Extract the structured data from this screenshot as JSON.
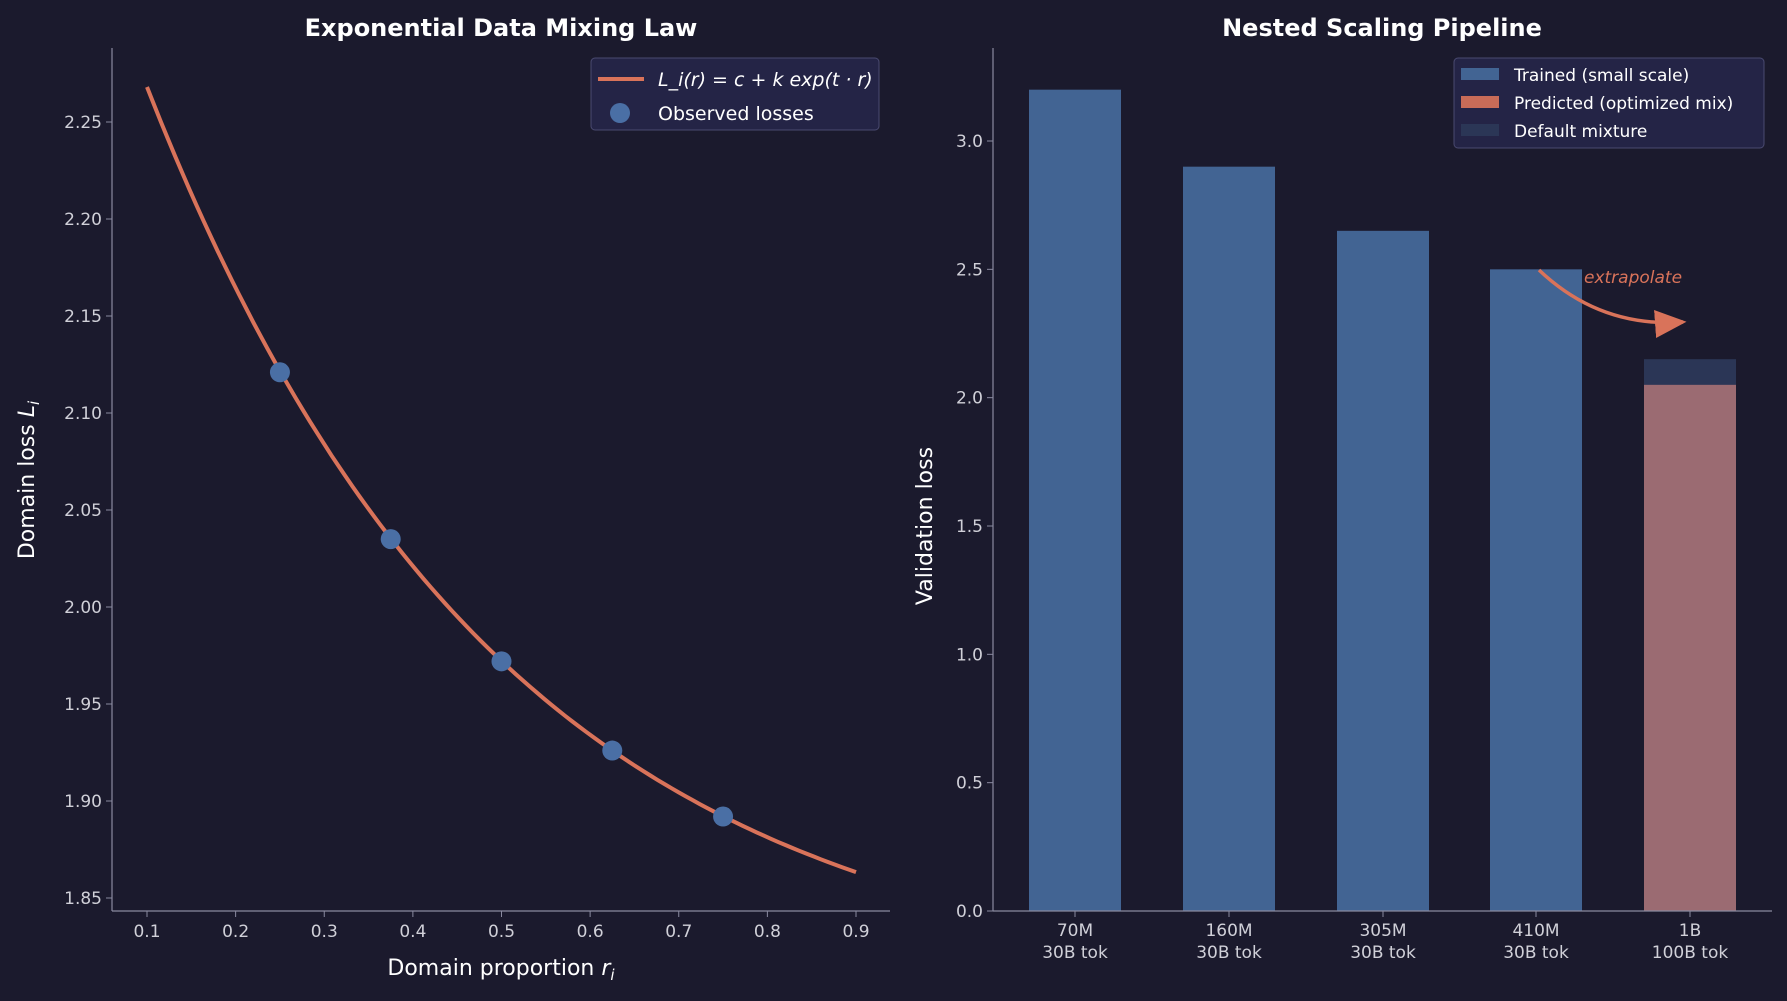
{
  "colors": {
    "background": "#1b1a2d",
    "trained": "#426493",
    "predicted": "#d9735a",
    "predicted_overlay": "#9b6b72",
    "default": "#2b3656",
    "curve": "#d9735a",
    "points": "#4a6fa5",
    "legend_bg": "#242446",
    "axis": "#8a8aa0",
    "text": "#ffffff",
    "tick_text": "#d0d0d8"
  },
  "chart_data": [
    {
      "type": "line",
      "title": "Exponential Data Mixing Law",
      "xlabel": "Domain proportion r_i",
      "ylabel": "Domain loss L_i",
      "xlim": [
        0.06,
        0.94
      ],
      "ylim": [
        1.843,
        2.288
      ],
      "xticks": [
        "0.1",
        "0.2",
        "0.3",
        "0.4",
        "0.5",
        "0.6",
        "0.7",
        "0.8",
        "0.9"
      ],
      "yticks": [
        "1.85",
        "1.90",
        "1.95",
        "2.00",
        "2.05",
        "2.10",
        "2.15",
        "2.20",
        "2.25"
      ],
      "grid": false,
      "legend_position": "top-right",
      "series": [
        {
          "name": "L_i(r) = c + k exp(t · r)",
          "kind": "line",
          "c": 1.8,
          "k": 0.601,
          "t": -2.5,
          "x_range": [
            0.1,
            0.9
          ]
        },
        {
          "name": "Observed losses",
          "kind": "scatter",
          "x": [
            0.25,
            0.375,
            0.5,
            0.625,
            0.75
          ],
          "y": [
            2.121,
            2.035,
            1.972,
            1.926,
            1.892
          ]
        }
      ]
    },
    {
      "type": "bar",
      "title": "Nested Scaling Pipeline",
      "xlabel": "",
      "ylabel": "Validation loss",
      "ylim": [
        0,
        3.4
      ],
      "yticks": [
        "0.0",
        "0.5",
        "1.0",
        "1.5",
        "2.0",
        "2.5",
        "3.0"
      ],
      "grid": false,
      "legend_position": "top-right",
      "categories": [
        [
          "70M",
          "30B tok"
        ],
        [
          "160M",
          "30B tok"
        ],
        [
          "305M",
          "30B tok"
        ],
        [
          "410M",
          "30B tok"
        ],
        [
          "1B",
          "100B tok"
        ]
      ],
      "series": [
        {
          "name": "Trained (small scale)",
          "values": [
            3.2,
            2.9,
            2.65,
            2.5,
            null
          ]
        },
        {
          "name": "Predicted (optimized mix)",
          "values": [
            null,
            null,
            null,
            null,
            2.05
          ]
        },
        {
          "name": "Default mixture",
          "values": [
            null,
            null,
            null,
            null,
            2.15
          ]
        }
      ],
      "annotation": "extrapolate"
    }
  ]
}
